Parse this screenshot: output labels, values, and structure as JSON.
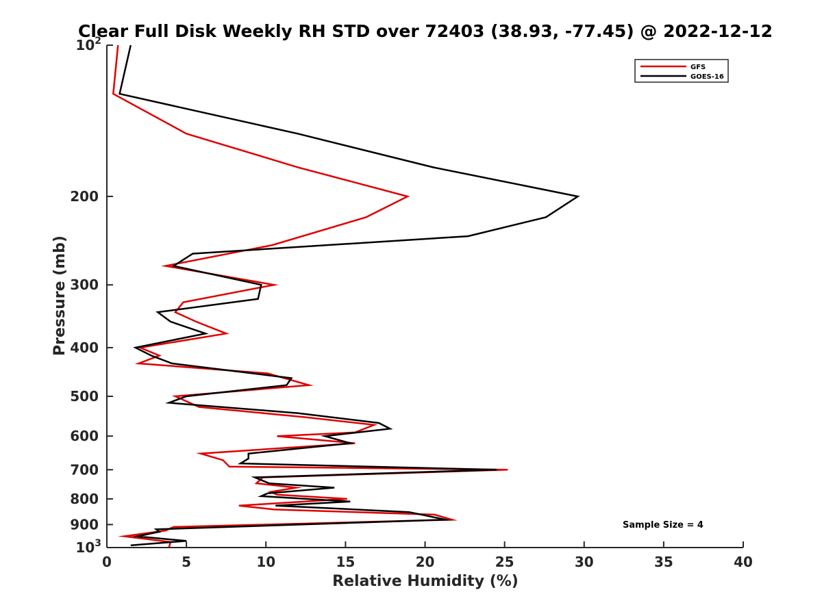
{
  "chart_data": {
    "type": "line",
    "title": "Clear Full Disk Weekly RH STD over 72403 (38.93, -77.45) @ 2022-12-12",
    "xlabel": "Relative Humidity (%)",
    "ylabel": "Pressure (mb)",
    "xlim": [
      0,
      40
    ],
    "ylim": [
      100,
      1000
    ],
    "y_scale": "log",
    "y_reversed": true,
    "x_ticks": [
      "0",
      "5",
      "10",
      "15",
      "20",
      "25",
      "30",
      "35",
      "40"
    ],
    "y_ticks": [
      {
        "value": 100,
        "base": "10",
        "exp": "2"
      },
      {
        "value": 200,
        "label": "200"
      },
      {
        "value": 300,
        "label": "300"
      },
      {
        "value": 400,
        "label": "400"
      },
      {
        "value": 500,
        "label": "500"
      },
      {
        "value": 600,
        "label": "600"
      },
      {
        "value": 700,
        "label": "700"
      },
      {
        "value": 800,
        "label": "800"
      },
      {
        "value": 900,
        "label": "900"
      },
      {
        "value": 1000,
        "base": "10",
        "exp": "3"
      }
    ],
    "legend_position": "top-right",
    "grid": false,
    "annotation": "Sample Size = 4",
    "series": [
      {
        "name": "GFS",
        "color": "#e00000",
        "points": [
          [
            0.7,
            100
          ],
          [
            0.4,
            125
          ],
          [
            5.0,
            150
          ],
          [
            12.0,
            175
          ],
          [
            18.9,
            200
          ],
          [
            16.3,
            220
          ],
          [
            10.4,
            250
          ],
          [
            3.7,
            275
          ],
          [
            10.5,
            300
          ],
          [
            4.8,
            325
          ],
          [
            4.3,
            340
          ],
          [
            5.6,
            355
          ],
          [
            7.5,
            375
          ],
          [
            2.1,
            400
          ],
          [
            3.3,
            415
          ],
          [
            2.0,
            430
          ],
          [
            10.1,
            450
          ],
          [
            12.7,
            475
          ],
          [
            4.3,
            500
          ],
          [
            5.8,
            525
          ],
          [
            12.4,
            550
          ],
          [
            16.8,
            570
          ],
          [
            15.6,
            590
          ],
          [
            10.7,
            600
          ],
          [
            15.6,
            620
          ],
          [
            5.9,
            650
          ],
          [
            7.3,
            670
          ],
          [
            7.7,
            690
          ],
          [
            25.2,
            700
          ],
          [
            9.8,
            725
          ],
          [
            9.4,
            745
          ],
          [
            11.9,
            760
          ],
          [
            10.3,
            775
          ],
          [
            10.7,
            785
          ],
          [
            15.1,
            800
          ],
          [
            8.3,
            825
          ],
          [
            10.5,
            840
          ],
          [
            20.6,
            860
          ],
          [
            21.7,
            880
          ],
          [
            4.2,
            910
          ],
          [
            3.7,
            925
          ],
          [
            1.1,
            950
          ],
          [
            4.0,
            975
          ],
          [
            3.9,
            1000
          ]
        ]
      },
      {
        "name": "GOES-16",
        "color": "#000000",
        "points": [
          [
            1.5,
            100
          ],
          [
            0.8,
            125
          ],
          [
            12.0,
            150
          ],
          [
            20.5,
            175
          ],
          [
            29.6,
            200
          ],
          [
            27.6,
            220
          ],
          [
            22.7,
            240
          ],
          [
            5.4,
            260
          ],
          [
            4.2,
            275
          ],
          [
            9.7,
            300
          ],
          [
            9.5,
            320
          ],
          [
            3.2,
            340
          ],
          [
            4.0,
            355
          ],
          [
            6.2,
            375
          ],
          [
            1.8,
            400
          ],
          [
            2.8,
            415
          ],
          [
            4.1,
            430
          ],
          [
            11.6,
            460
          ],
          [
            11.3,
            475
          ],
          [
            5.0,
            500
          ],
          [
            3.9,
            515
          ],
          [
            12.0,
            540
          ],
          [
            17.1,
            565
          ],
          [
            17.8,
            580
          ],
          [
            13.7,
            600
          ],
          [
            15.3,
            620
          ],
          [
            8.9,
            650
          ],
          [
            8.9,
            665
          ],
          [
            8.4,
            680
          ],
          [
            24.5,
            700
          ],
          [
            9.3,
            725
          ],
          [
            10.2,
            745
          ],
          [
            14.3,
            760
          ],
          [
            10.1,
            780
          ],
          [
            9.7,
            790
          ],
          [
            15.3,
            810
          ],
          [
            10.6,
            825
          ],
          [
            19.0,
            850
          ],
          [
            21.3,
            880
          ],
          [
            3.1,
            920
          ],
          [
            3.3,
            930
          ],
          [
            1.9,
            950
          ],
          [
            5.0,
            970
          ],
          [
            1.5,
            990
          ]
        ]
      }
    ]
  }
}
